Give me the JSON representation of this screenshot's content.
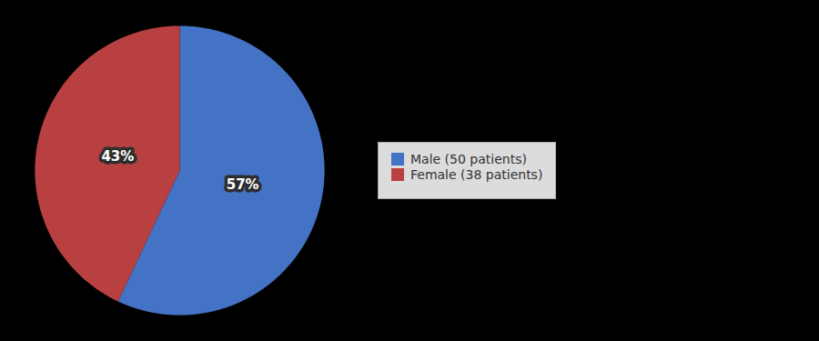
{
  "chart_data": {
    "type": "pie",
    "categories": [
      "Male (50 patients)",
      "Female (38 patients)"
    ],
    "values": [
      57,
      43
    ],
    "value_labels": [
      "57%",
      "43%"
    ],
    "colors": [
      "#4472C4",
      "#B94040"
    ],
    "data_labels": true,
    "legend": "right"
  }
}
